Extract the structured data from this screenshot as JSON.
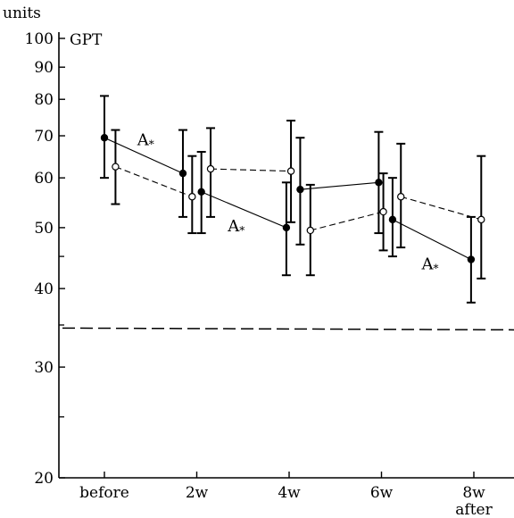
{
  "chart_data": {
    "type": "line",
    "ylabel": "units",
    "series_label": "GPT",
    "yscale": "log",
    "ylim": [
      20,
      100
    ],
    "yticks": [
      {
        "value": 20,
        "label": "20"
      },
      {
        "value": 30,
        "label": "30"
      },
      {
        "value": 40,
        "label": "40"
      },
      {
        "value": 50,
        "label": "50"
      },
      {
        "value": 60,
        "label": "60"
      },
      {
        "value": 70,
        "label": "70"
      },
      {
        "value": 80,
        "label": "80"
      },
      {
        "value": 90,
        "label": "90"
      },
      {
        "value": 100,
        "label": "100"
      }
    ],
    "yminor_ticks": [
      25,
      35,
      45
    ],
    "categories": [
      "before",
      "2w",
      "4w",
      "6w",
      "8w"
    ],
    "category_sublabels": [
      "",
      "",
      "",
      "",
      "after"
    ],
    "series": [
      {
        "marker": "filled",
        "line": "solid",
        "points": [
          {
            "x": 0.0,
            "y": 69.5,
            "lo": 60.0,
            "hi": 81.0
          },
          {
            "x": 0.85,
            "y": 61.0,
            "lo": 52.0,
            "hi": 71.5
          },
          {
            "x": 1.05,
            "y": 57.0,
            "lo": 49.0,
            "hi": 66.0
          },
          {
            "x": 1.97,
            "y": 50.0,
            "lo": 42.0,
            "hi": 59.0
          },
          {
            "x": 2.12,
            "y": 57.5,
            "lo": 47.0,
            "hi": 69.5
          },
          {
            "x": 2.97,
            "y": 59.0,
            "lo": 49.0,
            "hi": 71.0
          },
          {
            "x": 3.12,
            "y": 51.5,
            "lo": 45.0,
            "hi": 60.0
          },
          {
            "x": 3.97,
            "y": 44.5,
            "lo": 38.0,
            "hi": 52.0
          }
        ]
      },
      {
        "marker": "open",
        "line": "dashed",
        "points": [
          {
            "x": 0.12,
            "y": 62.5,
            "lo": 54.5,
            "hi": 71.5
          },
          {
            "x": 0.95,
            "y": 56.0,
            "lo": 49.0,
            "hi": 65.0
          },
          {
            "x": 1.15,
            "y": 62.0,
            "lo": 52.0,
            "hi": 72.0
          },
          {
            "x": 2.02,
            "y": 61.5,
            "lo": 51.0,
            "hi": 74.0
          },
          {
            "x": 2.23,
            "y": 49.5,
            "lo": 42.0,
            "hi": 58.5
          },
          {
            "x": 3.02,
            "y": 53.0,
            "lo": 46.0,
            "hi": 61.0
          },
          {
            "x": 3.21,
            "y": 56.0,
            "lo": 46.5,
            "hi": 68.0
          },
          {
            "x": 4.08,
            "y": 51.5,
            "lo": 41.5,
            "hi": 65.0
          }
        ]
      }
    ],
    "reference_line": {
      "y": 34.5,
      "style": "dashed"
    },
    "annotations": [
      {
        "text": "A",
        "sub": "*",
        "x": 0.22,
        "y": 68.5
      },
      {
        "text": "A",
        "sub": "*",
        "x": 1.2,
        "y": 50.0
      },
      {
        "text": "A",
        "sub": "*",
        "x": 3.3,
        "y": 43.5
      }
    ]
  }
}
